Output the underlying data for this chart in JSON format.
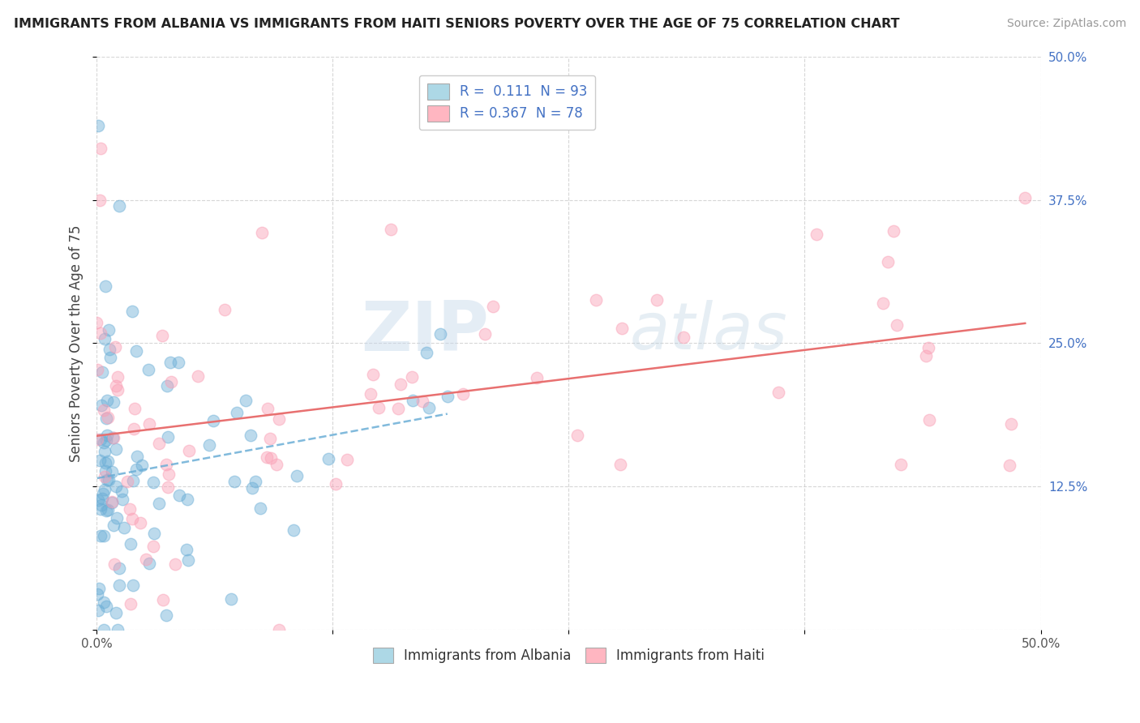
{
  "title": "IMMIGRANTS FROM ALBANIA VS IMMIGRANTS FROM HAITI SENIORS POVERTY OVER THE AGE OF 75 CORRELATION CHART",
  "source": "Source: ZipAtlas.com",
  "ylabel": "Seniors Poverty Over the Age of 75",
  "xlim": [
    0.0,
    0.5
  ],
  "ylim": [
    0.0,
    0.5
  ],
  "xtick_vals": [
    0.0,
    0.125,
    0.25,
    0.375,
    0.5
  ],
  "ytick_vals": [
    0.0,
    0.125,
    0.25,
    0.375,
    0.5
  ],
  "legend_label1": "R =  0.111  N = 93",
  "legend_label2": "R = 0.367  N = 78",
  "legend_color1": "#add8e6",
  "legend_color2": "#ffb6c1",
  "scatter_color1": "#6baed6",
  "scatter_color2": "#fa9fb5",
  "trendline_color1": "#6baed6",
  "trendline_color2": "#e87070",
  "watermark_zip": "ZIP",
  "watermark_atlas": "atlas",
  "background_color": "#ffffff",
  "grid_color": "#cccccc",
  "R1": 0.111,
  "N1": 93,
  "R2": 0.367,
  "N2": 78,
  "title_fontsize": 11.5,
  "source_fontsize": 10,
  "tick_fontsize": 11,
  "ylabel_fontsize": 12,
  "legend_fontsize": 12
}
